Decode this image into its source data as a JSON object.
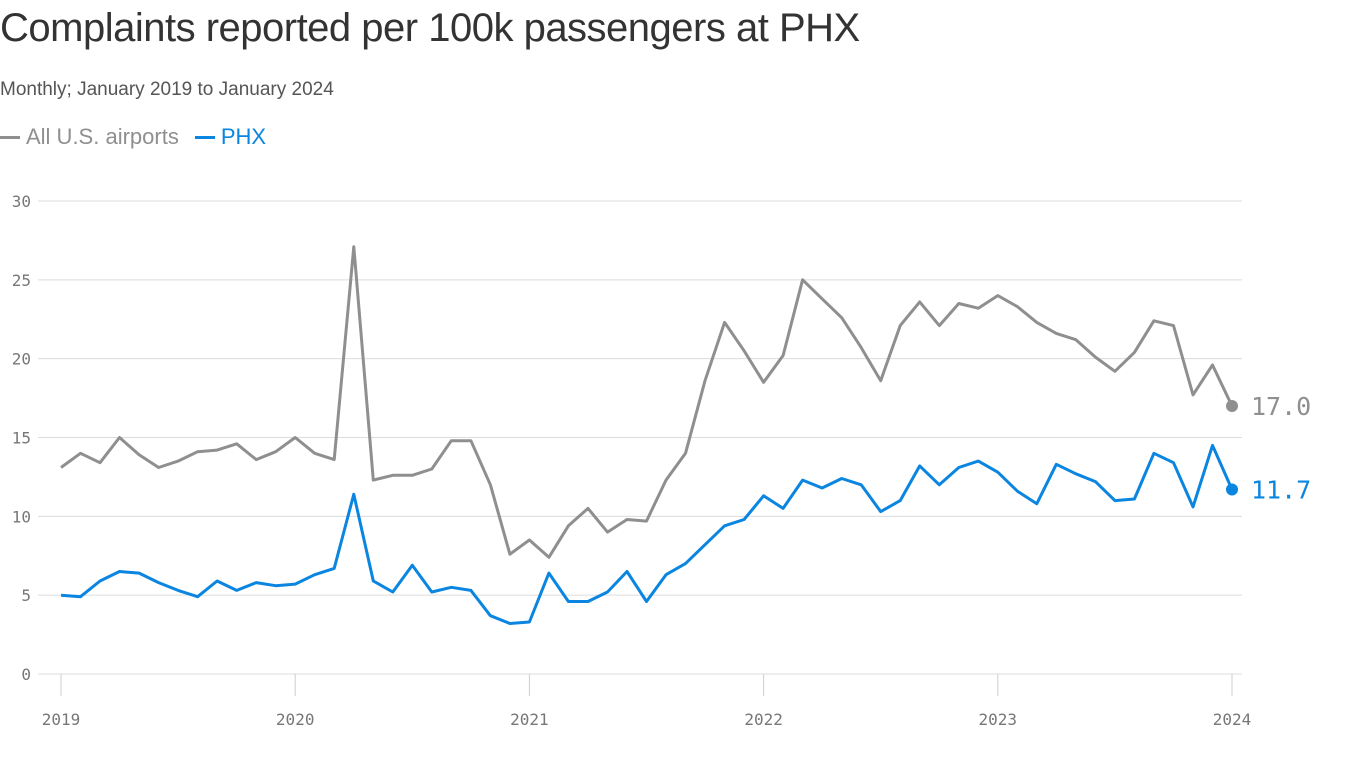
{
  "chart_data": {
    "type": "line",
    "title": "Complaints reported per 100k passengers at PHX",
    "subtitle": "Monthly; January 2019 to January 2024",
    "x_start": "2019-01",
    "x_end": "2024-01",
    "x_ticks": [
      "2019",
      "2020",
      "2021",
      "2022",
      "2023",
      "2024"
    ],
    "y_ticks": [
      0,
      5,
      10,
      15,
      20,
      25,
      30
    ],
    "ylim": [
      0,
      30
    ],
    "grid": "horizontal",
    "legend": "top-left",
    "series": [
      {
        "name": "All U.S. airports",
        "color": "#8f8f8f",
        "end_label": "17.0",
        "values": [
          13.1,
          14.0,
          13.4,
          15.0,
          13.9,
          13.1,
          13.5,
          14.1,
          14.2,
          14.6,
          13.6,
          14.1,
          15.0,
          14.0,
          13.6,
          27.1,
          12.3,
          12.6,
          12.6,
          13.0,
          14.8,
          14.8,
          12.0,
          7.6,
          8.5,
          7.4,
          9.4,
          10.5,
          9.0,
          9.8,
          9.7,
          12.3,
          14.0,
          18.6,
          22.3,
          20.5,
          18.5,
          20.2,
          25.0,
          23.8,
          22.6,
          20.7,
          18.6,
          22.1,
          23.6,
          22.1,
          23.5,
          23.2,
          24.0,
          23.3,
          22.3,
          21.6,
          21.2,
          20.1,
          19.2,
          20.4,
          22.4,
          22.1,
          17.7,
          19.6,
          17.0
        ]
      },
      {
        "name": "PHX",
        "color": "#0a85e0",
        "end_label": "11.7",
        "values": [
          5.0,
          4.9,
          5.9,
          6.5,
          6.4,
          5.8,
          5.3,
          4.9,
          5.9,
          5.3,
          5.8,
          5.6,
          5.7,
          6.3,
          6.7,
          11.4,
          5.9,
          5.2,
          6.9,
          5.2,
          5.5,
          5.3,
          3.7,
          3.2,
          3.3,
          6.4,
          4.6,
          4.6,
          5.2,
          6.5,
          4.6,
          6.3,
          7.0,
          8.2,
          9.4,
          9.8,
          11.3,
          10.5,
          12.3,
          11.8,
          12.4,
          12.0,
          10.3,
          11.0,
          13.2,
          12.0,
          13.1,
          13.5,
          12.8,
          11.6,
          10.8,
          13.3,
          12.7,
          12.2,
          11.0,
          11.1,
          14.0,
          13.4,
          10.6,
          14.5,
          11.7
        ]
      }
    ]
  }
}
